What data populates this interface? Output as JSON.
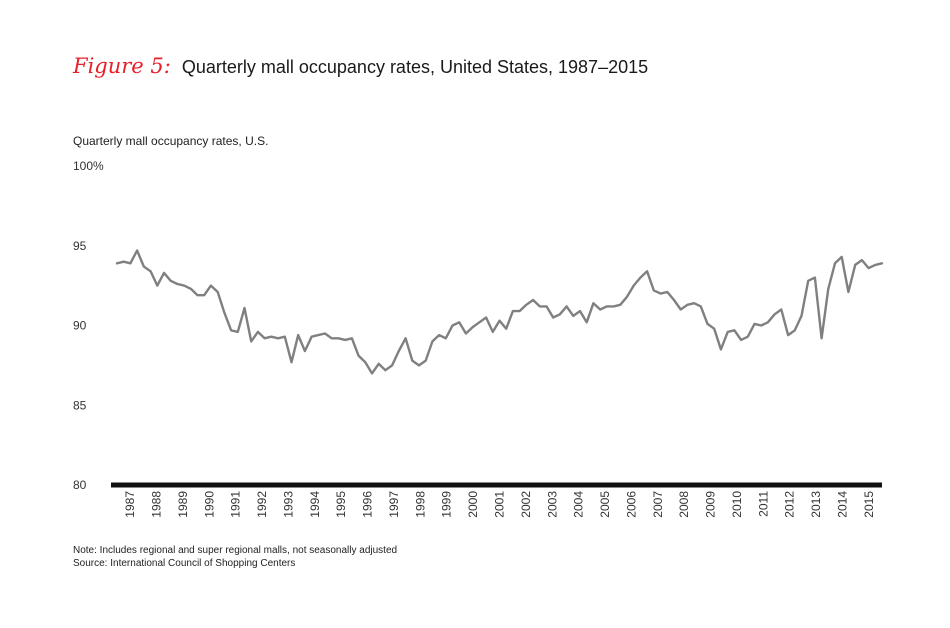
{
  "figure": {
    "label": "Figure 5:",
    "title": "Quarterly mall occupancy rates, United States, 1987–2015"
  },
  "colors": {
    "accent": "#e8202a",
    "line": "#808080",
    "axis": "#111111"
  },
  "notes": {
    "note": "Note: Includes regional and super regional malls, not seasonally adjusted",
    "source": "Source: International Council of Shopping Centers"
  },
  "chart_data": {
    "type": "line",
    "title": "Quarterly mall occupancy rates, United States, 1987–2015",
    "ylabel": "Quarterly mall occupancy rates, U.S.",
    "xlabel": "",
    "ylim": [
      80,
      100
    ],
    "yticks": [
      "100%",
      "95",
      "90",
      "85",
      "80"
    ],
    "x_labels": [
      "1987",
      "1988",
      "1989",
      "1990",
      "1991",
      "1992",
      "1993",
      "1994",
      "1995",
      "1996",
      "1997",
      "1998",
      "1999",
      "2000",
      "2001",
      "2002",
      "2003",
      "2004",
      "2005",
      "2006",
      "2007",
      "2008",
      "2009",
      "2010",
      "2011",
      "2012",
      "2013",
      "2014",
      "2015"
    ],
    "series": [
      {
        "name": "Occupancy rate",
        "values": [
          93.9,
          94.0,
          93.9,
          94.7,
          93.7,
          93.4,
          92.5,
          93.3,
          92.8,
          92.6,
          92.5,
          92.3,
          91.9,
          91.9,
          92.5,
          92.1,
          90.8,
          89.7,
          89.6,
          91.1,
          89.0,
          89.6,
          89.2,
          89.3,
          89.2,
          89.3,
          87.7,
          89.4,
          88.4,
          89.3,
          89.4,
          89.5,
          89.2,
          89.2,
          89.1,
          89.2,
          88.1,
          87.7,
          87.0,
          87.6,
          87.2,
          87.5,
          88.4,
          89.2,
          87.8,
          87.5,
          87.8,
          89.0,
          89.4,
          89.2,
          90.0,
          90.2,
          89.5,
          89.9,
          90.2,
          90.5,
          89.6,
          90.3,
          89.8,
          90.9,
          90.9,
          91.3,
          91.6,
          91.2,
          91.2,
          90.5,
          90.7,
          91.2,
          90.6,
          90.9,
          90.2,
          91.4,
          91.0,
          91.2,
          91.2,
          91.3,
          91.8,
          92.5,
          93.0,
          93.4,
          92.2,
          92.0,
          92.1,
          91.6,
          91.0,
          91.3,
          91.4,
          91.2,
          90.1,
          89.8,
          88.5,
          89.6,
          89.7,
          89.1,
          89.3,
          90.1,
          90.0,
          90.2,
          90.7,
          91.0,
          89.4,
          89.7,
          90.6,
          92.8,
          93.0,
          89.2,
          92.3,
          93.9,
          94.3,
          92.1,
          93.8,
          94.1,
          93.6,
          93.8,
          93.9
        ]
      }
    ]
  }
}
